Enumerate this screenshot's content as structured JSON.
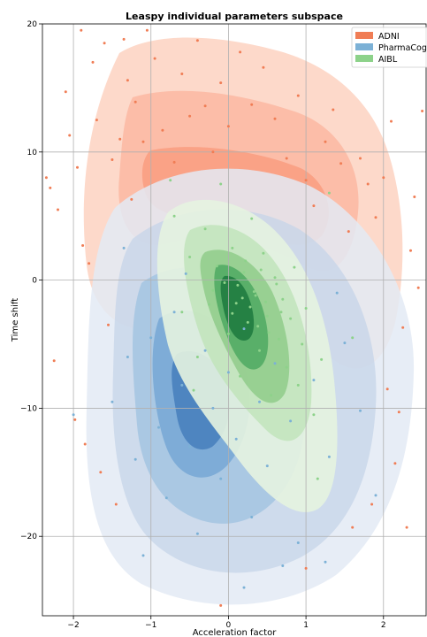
{
  "chart_data": {
    "type": "scatter",
    "title": "Leaspy individual parameters subspace",
    "xlabel": "Acceleration factor",
    "ylabel": "Time shift",
    "xlim": [
      -2.4,
      2.55
    ],
    "ylim": [
      -26.2,
      20
    ],
    "xticks": [
      -2,
      -1,
      0,
      1,
      2
    ],
    "yticks": [
      -20,
      -10,
      0,
      10,
      20
    ],
    "grid": true,
    "legend_position": "top-right",
    "series": [
      {
        "name": "ADNI",
        "color": "#f07d55",
        "density_center": [
          0.0,
          5.0
        ],
        "points": [
          [
            -2.3,
            7.2
          ],
          [
            -2.25,
            -6.3
          ],
          [
            -2.2,
            5.5
          ],
          [
            -2.1,
            14.7
          ],
          [
            -2.05,
            11.3
          ],
          [
            -1.95,
            8.8
          ],
          [
            -1.9,
            19.5
          ],
          [
            -1.88,
            2.7
          ],
          [
            -1.85,
            -12.8
          ],
          [
            -1.8,
            1.3
          ],
          [
            -1.75,
            17.0
          ],
          [
            -1.7,
            12.5
          ],
          [
            -1.65,
            -15.0
          ],
          [
            -1.6,
            18.5
          ],
          [
            -1.55,
            -3.5
          ],
          [
            -1.5,
            9.4
          ],
          [
            -1.45,
            -17.5
          ],
          [
            -1.4,
            11.0
          ],
          [
            -1.35,
            18.8
          ],
          [
            -1.3,
            15.6
          ],
          [
            -1.25,
            6.3
          ],
          [
            -1.2,
            13.9
          ],
          [
            -1.1,
            10.8
          ],
          [
            -1.05,
            19.5
          ],
          [
            -0.95,
            17.3
          ],
          [
            -0.85,
            11.7
          ],
          [
            -0.7,
            9.2
          ],
          [
            -0.6,
            16.1
          ],
          [
            -0.5,
            12.8
          ],
          [
            -0.4,
            18.7
          ],
          [
            -0.3,
            13.6
          ],
          [
            -0.2,
            10.0
          ],
          [
            -0.1,
            15.4
          ],
          [
            0.0,
            12.0
          ],
          [
            0.15,
            17.8
          ],
          [
            0.3,
            13.7
          ],
          [
            0.45,
            16.6
          ],
          [
            0.6,
            12.6
          ],
          [
            0.75,
            9.5
          ],
          [
            0.9,
            14.4
          ],
          [
            1.0,
            7.8
          ],
          [
            1.1,
            5.8
          ],
          [
            1.25,
            10.8
          ],
          [
            1.35,
            13.3
          ],
          [
            1.45,
            9.1
          ],
          [
            1.55,
            3.8
          ],
          [
            1.7,
            9.5
          ],
          [
            1.8,
            7.5
          ],
          [
            1.9,
            4.9
          ],
          [
            2.0,
            8.0
          ],
          [
            2.05,
            -8.5
          ],
          [
            2.1,
            12.4
          ],
          [
            2.15,
            -14.3
          ],
          [
            2.2,
            -10.3
          ],
          [
            2.25,
            -3.7
          ],
          [
            2.3,
            -19.3
          ],
          [
            2.35,
            2.3
          ],
          [
            2.4,
            6.5
          ],
          [
            2.45,
            -0.6
          ],
          [
            2.5,
            13.2
          ],
          [
            -2.35,
            8.0
          ],
          [
            -1.98,
            -10.9
          ],
          [
            1.6,
            -19.3
          ],
          [
            1.85,
            -17.5
          ],
          [
            -0.1,
            -25.4
          ],
          [
            1.0,
            -22.5
          ]
        ]
      },
      {
        "name": "PharmaCog",
        "color": "#7cb1d6",
        "density_center": [
          -0.2,
          -8.5
        ],
        "points": [
          [
            -2.0,
            -10.5
          ],
          [
            -1.5,
            -9.5
          ],
          [
            -1.3,
            -6.0
          ],
          [
            -1.2,
            -14.0
          ],
          [
            -1.0,
            -4.5
          ],
          [
            -0.9,
            -11.5
          ],
          [
            -0.8,
            -17.0
          ],
          [
            -0.7,
            -2.5
          ],
          [
            -0.6,
            -8.2
          ],
          [
            -0.5,
            -13.0
          ],
          [
            -0.4,
            -19.8
          ],
          [
            -0.3,
            -5.5
          ],
          [
            -0.2,
            -10.0
          ],
          [
            -0.1,
            -15.5
          ],
          [
            0.0,
            -7.2
          ],
          [
            0.1,
            -12.4
          ],
          [
            0.2,
            -3.8
          ],
          [
            0.3,
            -18.5
          ],
          [
            0.4,
            -9.5
          ],
          [
            0.5,
            -14.5
          ],
          [
            0.6,
            -6.5
          ],
          [
            0.8,
            -11.0
          ],
          [
            0.9,
            -20.5
          ],
          [
            1.1,
            -7.8
          ],
          [
            1.3,
            -13.8
          ],
          [
            1.5,
            -4.9
          ],
          [
            1.7,
            -10.2
          ],
          [
            -1.1,
            -21.5
          ],
          [
            0.7,
            -22.3
          ],
          [
            -0.55,
            0.5
          ],
          [
            1.25,
            -22.0
          ],
          [
            1.9,
            -16.8
          ],
          [
            -1.35,
            2.5
          ],
          [
            1.4,
            -1.0
          ],
          [
            0.2,
            -24.0
          ]
        ]
      },
      {
        "name": "AIBL",
        "color": "#8dd28a",
        "density_center": [
          0.3,
          -1.0
        ],
        "points": [
          [
            -0.7,
            5.0
          ],
          [
            -0.6,
            -2.5
          ],
          [
            -0.5,
            1.8
          ],
          [
            -0.4,
            -6.0
          ],
          [
            -0.3,
            4.0
          ],
          [
            -0.2,
            -0.8
          ],
          [
            -0.1,
            7.5
          ],
          [
            0.0,
            -4.2
          ],
          [
            0.05,
            2.5
          ],
          [
            0.1,
            -1.8
          ],
          [
            0.15,
            -7.5
          ],
          [
            0.2,
            0.6
          ],
          [
            0.25,
            -3.3
          ],
          [
            0.3,
            4.8
          ],
          [
            0.35,
            -1.2
          ],
          [
            0.4,
            -5.5
          ],
          [
            0.45,
            2.1
          ],
          [
            0.5,
            -2.8
          ],
          [
            0.55,
            -9.0
          ],
          [
            0.6,
            0.2
          ],
          [
            0.65,
            -4.6
          ],
          [
            0.7,
            -1.5
          ],
          [
            0.75,
            -6.8
          ],
          [
            0.8,
            -3.0
          ],
          [
            0.85,
            1.0
          ],
          [
            0.9,
            -8.2
          ],
          [
            0.95,
            -5.0
          ],
          [
            1.0,
            -2.2
          ],
          [
            1.1,
            -10.5
          ],
          [
            1.2,
            -6.2
          ],
          [
            0.05,
            -2.6
          ],
          [
            0.12,
            -0.4
          ],
          [
            0.18,
            -1.4
          ],
          [
            0.22,
            1.5
          ],
          [
            0.28,
            -2.1
          ],
          [
            0.33,
            -0.9
          ],
          [
            0.38,
            -3.6
          ],
          [
            0.42,
            0.8
          ],
          [
            0.48,
            -1.7
          ],
          [
            0.52,
            -4.1
          ],
          [
            -0.05,
            -0.2
          ],
          [
            -0.15,
            1.1
          ],
          [
            -0.25,
            -1.9
          ],
          [
            0.62,
            -0.3
          ],
          [
            0.68,
            -2.5
          ],
          [
            -0.45,
            -8.6
          ],
          [
            1.3,
            6.8
          ],
          [
            1.15,
            -15.5
          ],
          [
            -0.75,
            7.8
          ],
          [
            1.6,
            -4.5
          ]
        ]
      }
    ]
  }
}
